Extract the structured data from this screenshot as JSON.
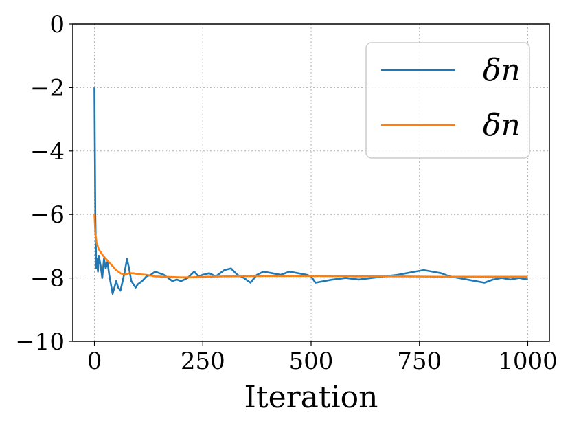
{
  "chart_data": {
    "type": "line",
    "title": "",
    "xlabel": "Iteration",
    "ylabel": "",
    "xlim": [
      -50,
      1050
    ],
    "ylim": [
      -10,
      0
    ],
    "grid": true,
    "legend_position": "top-right",
    "xticks": [
      0,
      250,
      500,
      750,
      1000
    ],
    "xtick_labels": [
      "0",
      "250",
      "500",
      "750",
      "1000"
    ],
    "yticks": [
      0,
      -2,
      -4,
      -6,
      -8,
      -10
    ],
    "ytick_labels": [
      "0",
      "−2",
      "−4",
      "−6",
      "−8",
      "−10"
    ],
    "series": [
      {
        "name": "δn",
        "color": "#1f77b4",
        "x": [
          0,
          2,
          4,
          6,
          8,
          10,
          14,
          18,
          22,
          26,
          30,
          34,
          38,
          42,
          46,
          50,
          55,
          60,
          65,
          70,
          75,
          80,
          85,
          90,
          95,
          100,
          110,
          120,
          130,
          140,
          150,
          160,
          170,
          180,
          190,
          200,
          215,
          230,
          240,
          250,
          265,
          280,
          300,
          315,
          330,
          345,
          360,
          375,
          390,
          410,
          430,
          450,
          470,
          490,
          500,
          510,
          530,
          550,
          580,
          610,
          640,
          670,
          700,
          720,
          740,
          760,
          780,
          800,
          820,
          840,
          860,
          880,
          900,
          920,
          940,
          960,
          980,
          1000
        ],
        "y": [
          -2.0,
          -6.0,
          -7.7,
          -7.4,
          -7.8,
          -7.3,
          -7.6,
          -8.0,
          -7.4,
          -7.7,
          -7.5,
          -7.9,
          -8.2,
          -8.5,
          -8.3,
          -8.1,
          -8.3,
          -8.4,
          -8.1,
          -7.8,
          -7.4,
          -7.7,
          -8.1,
          -8.2,
          -8.3,
          -8.2,
          -8.1,
          -7.95,
          -7.9,
          -7.8,
          -7.85,
          -7.9,
          -8.0,
          -8.1,
          -8.05,
          -8.1,
          -8.0,
          -7.8,
          -7.95,
          -7.9,
          -7.85,
          -7.95,
          -7.75,
          -7.7,
          -7.9,
          -8.0,
          -8.15,
          -7.9,
          -7.8,
          -7.85,
          -7.9,
          -7.8,
          -7.85,
          -7.9,
          -7.95,
          -8.15,
          -8.1,
          -8.05,
          -8.0,
          -8.05,
          -8.0,
          -7.95,
          -7.9,
          -7.85,
          -7.8,
          -7.75,
          -7.8,
          -7.85,
          -7.95,
          -8.0,
          -8.05,
          -8.1,
          -8.15,
          -8.05,
          -8.0,
          -8.05,
          -8.0,
          -8.05
        ]
      },
      {
        "name": "δ̄n",
        "color": "#ff7f0e",
        "x": [
          0,
          2,
          5,
          10,
          15,
          20,
          30,
          40,
          50,
          60,
          70,
          80,
          90,
          100,
          120,
          140,
          160,
          180,
          200,
          220,
          240,
          260,
          300,
          400,
          500,
          600,
          700,
          800,
          900,
          1000
        ],
        "y": [
          -6.0,
          -6.6,
          -6.9,
          -7.1,
          -7.2,
          -7.3,
          -7.45,
          -7.6,
          -7.75,
          -7.85,
          -7.9,
          -7.85,
          -7.85,
          -7.88,
          -7.9,
          -7.95,
          -7.96,
          -7.97,
          -7.98,
          -7.98,
          -7.97,
          -7.96,
          -7.95,
          -7.94,
          -7.94,
          -7.95,
          -7.95,
          -7.96,
          -7.96,
          -7.96
        ]
      }
    ]
  }
}
